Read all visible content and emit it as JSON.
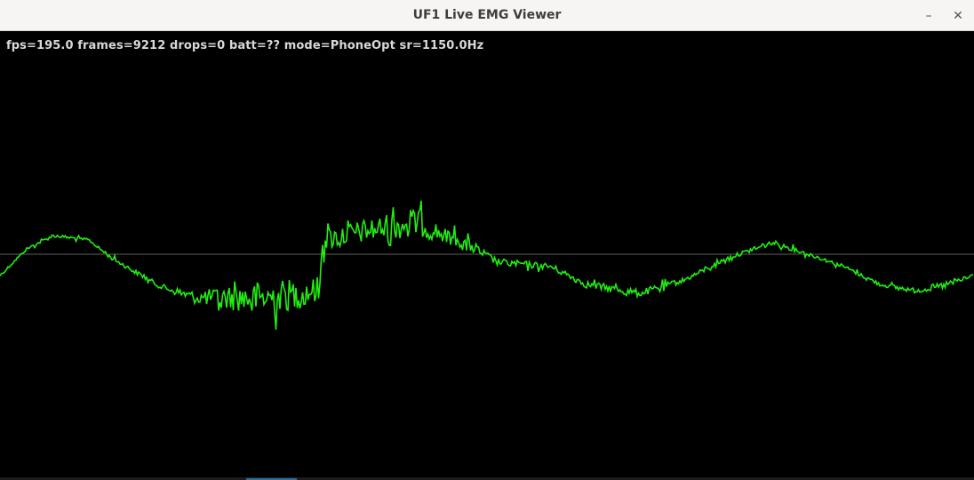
{
  "window": {
    "title": "UF1 Live EMG Viewer",
    "minimize_icon": "minimize-icon",
    "close_icon": "close-icon",
    "minimize_glyph": "–",
    "close_glyph": "✕"
  },
  "status": {
    "text": "fps=195.0 frames=9212 drops=0 batt=?? mode=PhoneOpt sr=1150.0Hz"
  },
  "plot": {
    "trace_color": "#22ee11",
    "baseline_color": "#606060",
    "background": "#000000"
  }
}
